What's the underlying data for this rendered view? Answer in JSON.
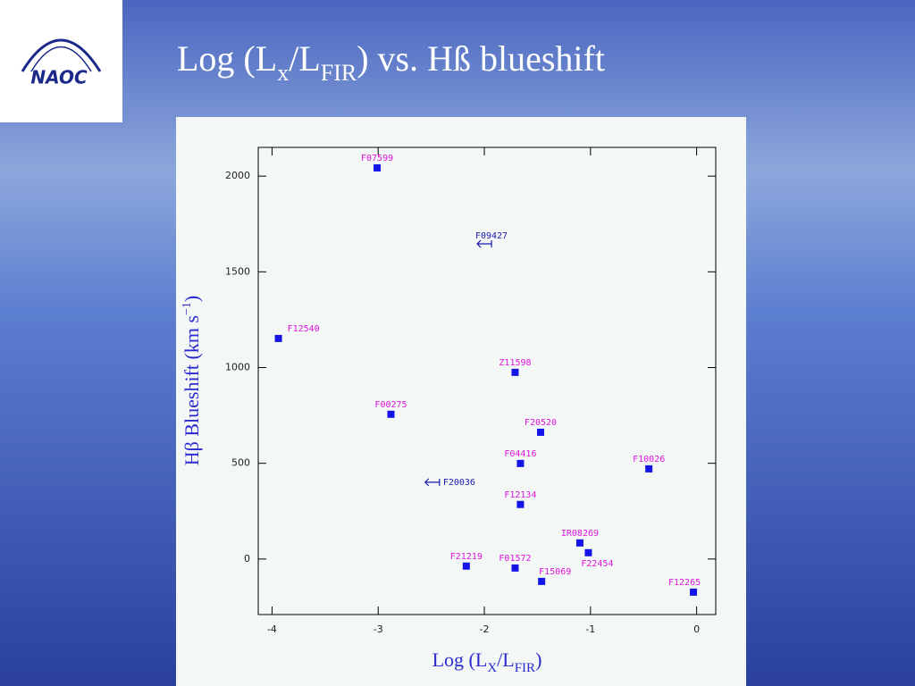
{
  "logo": "NAOC",
  "chart_data": {
    "type": "scatter",
    "title_parts": [
      "Log (L",
      "x",
      "/L",
      "FIR",
      ") vs. Hß blueshift"
    ],
    "x_label_parts": [
      "Log (L",
      "X",
      "/L",
      "FIR",
      ")"
    ],
    "y_label_parts": [
      "Hβ Blueshift (km s",
      "−1",
      ")"
    ],
    "xlim": [
      -4.13,
      0.18
    ],
    "ylim": [
      -290,
      2150
    ],
    "xticks": [
      -4,
      -3,
      -2,
      -1,
      0
    ],
    "yticks": [
      0,
      500,
      1000,
      1500,
      2000
    ],
    "series": [
      {
        "marker": "square",
        "color": "#1414e6",
        "labels": [
          "F07599",
          "F12540",
          "Z11598",
          "F00275",
          "F20520",
          "F04416",
          "F10026",
          "F12134",
          "IR08269",
          "F22454",
          "F21219",
          "F01572",
          "F15069",
          "F12265"
        ],
        "x": [
          -3.01,
          -3.94,
          -1.71,
          -2.88,
          -1.47,
          -1.66,
          -0.45,
          -1.66,
          -1.1,
          -1.02,
          -2.17,
          -1.71,
          -1.46,
          -0.03
        ],
        "values": [
          2043,
          1152,
          975,
          756,
          662,
          499,
          471,
          285,
          84,
          33,
          -37,
          -47,
          -117,
          -173
        ]
      },
      {
        "marker": "upper-limit",
        "color": "#1a1ab0",
        "labels": [
          "F09427",
          "F20036"
        ],
        "x": [
          -2.0,
          -2.49
        ],
        "values": [
          1646,
          401
        ]
      }
    ]
  }
}
